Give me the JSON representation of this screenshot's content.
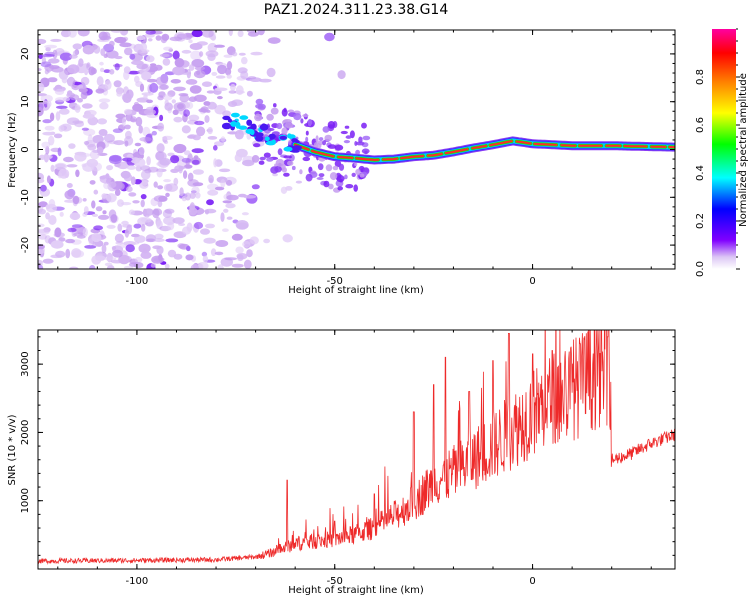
{
  "title": "PAZ1.2024.311.23.38.G14",
  "chart_data": [
    {
      "type": "heatmap",
      "xlabel": "Height of straight line (km)",
      "ylabel": "Frequency (Hz)",
      "xlim": [
        -125,
        36
      ],
      "ylim": [
        -25,
        25
      ],
      "xticks": [
        -100,
        -50,
        0
      ],
      "yticks": [
        -20,
        -10,
        0,
        10,
        20
      ],
      "ridge": [
        [
          -75,
          6
        ],
        [
          -70,
          4
        ],
        [
          -65,
          2.5
        ],
        [
          -60,
          1
        ],
        [
          -55,
          -0.5
        ],
        [
          -50,
          -1.5
        ],
        [
          -45,
          -1.8
        ],
        [
          -40,
          -2.2
        ],
        [
          -35,
          -2
        ],
        [
          -30,
          -1.5
        ],
        [
          -25,
          -1.2
        ],
        [
          -20,
          -0.5
        ],
        [
          -15,
          0.3
        ],
        [
          -10,
          1
        ],
        [
          -5,
          1.8
        ],
        [
          0,
          1.2
        ],
        [
          5,
          1
        ],
        [
          10,
          0.8
        ],
        [
          15,
          0.8
        ],
        [
          20,
          0.8
        ],
        [
          25,
          0.7
        ],
        [
          30,
          0.6
        ],
        [
          36,
          0.5
        ]
      ],
      "noise_region_x": [
        -125,
        -65
      ],
      "colorbar": {
        "label": "Normalized spectral amplitude",
        "ticks": [
          0.0,
          0.2,
          0.4,
          0.6,
          0.8
        ],
        "range": [
          0,
          1
        ],
        "colors": [
          "#ffffff",
          "#dcc6f5",
          "#8000ff",
          "#0000ff",
          "#00ffff",
          "#00ff00",
          "#ffff00",
          "#ff8000",
          "#ff0000",
          "#ff00a0"
        ]
      }
    },
    {
      "type": "line",
      "xlabel": "Height of straight line (km)",
      "ylabel": "SNR (10 * v/v)",
      "xlim": [
        -125,
        36
      ],
      "ylim": [
        0,
        3500
      ],
      "xticks": [
        -100,
        -50,
        0
      ],
      "yticks": [
        1000,
        2000,
        3000
      ],
      "series_color": "#ee2a2a",
      "envelope": [
        [
          -125,
          120
        ],
        [
          -100,
          130
        ],
        [
          -80,
          140
        ],
        [
          -70,
          180
        ],
        [
          -65,
          260
        ],
        [
          -60,
          380
        ],
        [
          -55,
          420
        ],
        [
          -50,
          450
        ],
        [
          -45,
          520
        ],
        [
          -40,
          620
        ],
        [
          -35,
          800
        ],
        [
          -30,
          1000
        ],
        [
          -25,
          1300
        ],
        [
          -20,
          1450
        ],
        [
          -15,
          1650
        ],
        [
          -10,
          1850
        ],
        [
          -5,
          2100
        ],
        [
          0,
          2350
        ],
        [
          5,
          2550
        ],
        [
          10,
          2700
        ],
        [
          15,
          2900
        ],
        [
          19.5,
          3050
        ],
        [
          20,
          1600
        ],
        [
          25,
          1700
        ],
        [
          30,
          1850
        ],
        [
          36,
          1980
        ]
      ],
      "peaks": [
        [
          -62,
          1300
        ],
        [
          -50,
          700
        ],
        [
          -40,
          1100
        ],
        [
          -30,
          2300
        ],
        [
          -25,
          2700
        ],
        [
          -22,
          3100
        ],
        [
          -16,
          2600
        ],
        [
          -10,
          3050
        ],
        [
          -6,
          3450
        ],
        [
          0,
          3150
        ],
        [
          5,
          3200
        ],
        [
          12,
          3300
        ],
        [
          19,
          3400
        ]
      ]
    }
  ]
}
